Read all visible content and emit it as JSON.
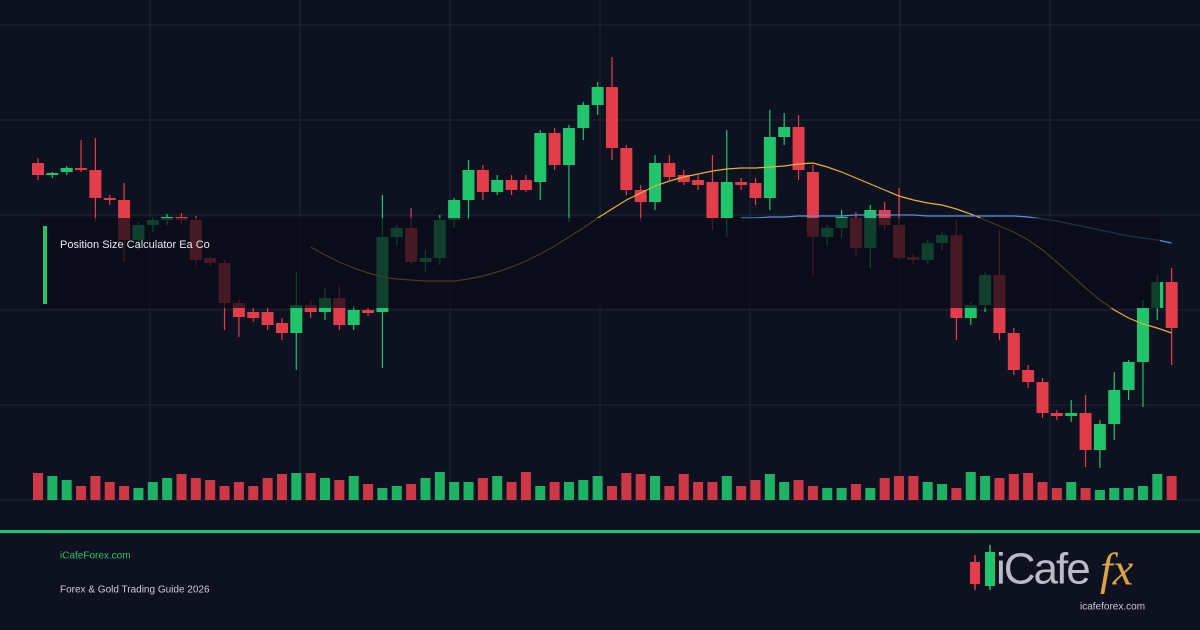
{
  "chart_data": {
    "type": "candlestick",
    "overlay_title": "Position Size Calculator Ea Co",
    "footer_site": "iCafeForex.com",
    "footer_subtitle": "Forex & Gold Trading Guide 2026",
    "logo_left": "iCafe",
    "logo_right": "fx",
    "logo_url": "icafeforex.com",
    "up_color": "#1fc46b",
    "down_color": "#e23d4b",
    "grid": true,
    "ylim": [
      0,
      500
    ],
    "yticks": [
      95,
      190,
      285,
      380,
      475
    ],
    "vlim": [
      0,
      100
    ],
    "candles": [
      [
        337,
        342,
        320,
        325
      ],
      [
        325,
        328,
        322,
        327
      ],
      [
        328,
        334,
        325,
        332
      ],
      [
        332,
        360,
        328,
        330
      ],
      [
        330,
        362,
        278,
        302
      ],
      [
        302,
        305,
        295,
        300
      ],
      [
        300,
        317,
        238,
        260
      ],
      [
        260,
        278,
        250,
        275
      ],
      [
        275,
        282,
        268,
        280
      ],
      [
        280,
        286,
        275,
        283
      ],
      [
        283,
        287,
        276,
        280
      ],
      [
        280,
        284,
        235,
        240
      ],
      [
        242,
        245,
        234,
        237
      ],
      [
        237,
        240,
        170,
        197
      ],
      [
        197,
        200,
        163,
        183
      ],
      [
        188,
        192,
        178,
        182
      ],
      [
        188,
        192,
        170,
        175
      ],
      [
        177,
        182,
        160,
        167
      ],
      [
        167,
        228,
        130,
        195
      ],
      [
        195,
        200,
        182,
        188
      ],
      [
        188,
        212,
        180,
        202
      ],
      [
        202,
        215,
        170,
        175
      ],
      [
        175,
        195,
        170,
        190
      ],
      [
        190,
        193,
        184,
        187
      ],
      [
        188,
        305,
        132,
        263
      ],
      [
        263,
        275,
        255,
        272
      ],
      [
        272,
        292,
        235,
        238
      ],
      [
        238,
        250,
        228,
        242
      ],
      [
        242,
        285,
        235,
        280
      ],
      [
        280,
        302,
        272,
        300
      ],
      [
        300,
        340,
        280,
        330
      ],
      [
        330,
        335,
        300,
        308
      ],
      [
        308,
        325,
        305,
        320
      ],
      [
        320,
        325,
        305,
        310
      ],
      [
        320,
        325,
        308,
        310
      ],
      [
        318,
        370,
        300,
        367
      ],
      [
        367,
        372,
        330,
        335
      ],
      [
        335,
        375,
        278,
        372
      ],
      [
        372,
        398,
        360,
        395
      ],
      [
        395,
        418,
        385,
        413
      ],
      [
        413,
        443,
        340,
        352
      ],
      [
        352,
        355,
        305,
        310
      ],
      [
        310,
        315,
        278,
        298
      ],
      [
        298,
        345,
        290,
        337
      ],
      [
        337,
        345,
        320,
        323
      ],
      [
        325,
        330,
        315,
        318
      ],
      [
        320,
        325,
        310,
        315
      ],
      [
        318,
        345,
        270,
        282
      ],
      [
        282,
        370,
        263,
        318
      ],
      [
        318,
        322,
        310,
        315
      ],
      [
        317,
        322,
        295,
        302
      ],
      [
        302,
        390,
        290,
        363
      ],
      [
        363,
        387,
        355,
        373
      ],
      [
        373,
        385,
        320,
        330
      ],
      [
        328,
        335,
        225,
        263
      ],
      [
        263,
        275,
        255,
        272
      ],
      [
        272,
        290,
        262,
        283
      ],
      [
        282,
        288,
        245,
        252
      ],
      [
        252,
        295,
        232,
        290
      ],
      [
        290,
        298,
        270,
        275
      ],
      [
        275,
        312,
        240,
        242
      ],
      [
        243,
        246,
        236,
        240
      ],
      [
        240,
        260,
        236,
        257
      ],
      [
        257,
        268,
        250,
        265
      ],
      [
        265,
        280,
        160,
        182
      ],
      [
        182,
        198,
        175,
        195
      ],
      [
        195,
        228,
        188,
        225
      ],
      [
        225,
        270,
        160,
        167
      ],
      [
        167,
        172,
        125,
        130
      ],
      [
        130,
        135,
        112,
        118
      ],
      [
        118,
        122,
        82,
        87
      ],
      [
        87,
        90,
        80,
        84
      ],
      [
        84,
        100,
        78,
        87
      ],
      [
        87,
        105,
        33,
        50
      ],
      [
        50,
        80,
        32,
        76
      ],
      [
        76,
        128,
        60,
        110
      ],
      [
        110,
        140,
        100,
        138
      ],
      [
        138,
        200,
        93,
        192
      ],
      [
        192,
        225,
        180,
        218
      ],
      [
        218,
        232,
        135,
        172
      ]
    ],
    "volume": [
      27,
      24,
      20,
      14,
      24,
      18,
      14,
      12,
      18,
      22,
      26,
      22,
      20,
      14,
      18,
      14,
      22,
      26,
      27,
      27,
      22,
      20,
      24,
      16,
      12,
      14,
      16,
      22,
      28,
      18,
      18,
      22,
      24,
      18,
      28,
      14,
      18,
      18,
      20,
      24,
      14,
      27,
      26,
      24,
      14,
      26,
      18,
      18,
      24,
      14,
      20,
      26,
      18,
      20,
      14,
      12,
      12,
      16,
      12,
      22,
      24,
      24,
      18,
      16,
      12,
      28,
      24,
      22,
      26,
      27,
      18,
      12,
      18,
      12,
      10,
      12,
      12,
      14,
      26,
      24
    ],
    "lines": [
      {
        "color": "#e6b23a",
        "values": [
          null,
          null,
          null,
          null,
          null,
          null,
          null,
          null,
          null,
          null,
          null,
          null,
          null,
          null,
          null,
          null,
          null,
          null,
          null,
          253,
          245,
          238,
          232,
          227,
          223,
          221,
          220,
          219,
          219,
          219,
          221,
          224,
          228,
          233,
          239,
          246,
          254,
          263,
          272,
          282,
          291,
          300,
          307,
          314,
          319,
          323,
          326,
          329,
          331,
          332,
          332,
          333,
          334,
          336,
          337,
          333,
          328,
          322,
          316,
          310,
          304,
          300,
          297,
          295,
          291,
          286,
          280,
          274,
          268,
          260,
          250,
          238,
          225,
          212,
          200,
          190,
          182,
          176,
          172,
          167
        ]
      },
      {
        "color": "#5a8fd6",
        "values": [
          null,
          null,
          null,
          null,
          null,
          null,
          null,
          null,
          null,
          null,
          null,
          null,
          null,
          null,
          null,
          null,
          null,
          null,
          null,
          null,
          null,
          null,
          null,
          null,
          null,
          null,
          null,
          null,
          null,
          null,
          null,
          null,
          null,
          null,
          null,
          null,
          null,
          null,
          null,
          null,
          null,
          null,
          null,
          null,
          null,
          null,
          null,
          null,
          null,
          282,
          282,
          283,
          283,
          284,
          284,
          284,
          284,
          285,
          285,
          285,
          285,
          285,
          284,
          284,
          284,
          284,
          284,
          284,
          284,
          283,
          281,
          279,
          276,
          273,
          270,
          267,
          264,
          262,
          260,
          257
        ]
      }
    ]
  }
}
